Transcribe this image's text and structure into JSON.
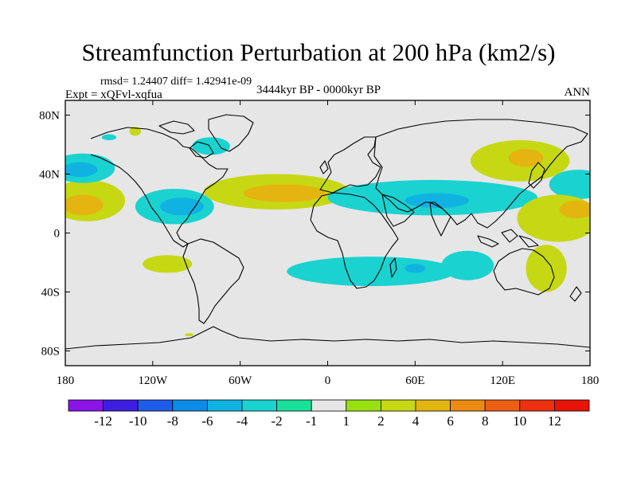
{
  "title": "Streamfunction Perturbation at 200 hPa (km2/s)",
  "stats": "rmsd= 1.24407 diff= 1.42941e-09",
  "experiment": "Expt = xQFvl-xqfua",
  "period": "3444kyr BP - 0000kyr BP",
  "season": "ANN",
  "map": {
    "projection": "cylindrical-equidistant",
    "lon_range": [
      -180,
      180
    ],
    "lat_range": [
      -90,
      90
    ],
    "background": "#e6e6e6",
    "lon_ticks": [
      {
        "value": -180,
        "label": "180"
      },
      {
        "value": -120,
        "label": "120W"
      },
      {
        "value": -60,
        "label": "60W"
      },
      {
        "value": 0,
        "label": "0"
      },
      {
        "value": 60,
        "label": "60E"
      },
      {
        "value": 120,
        "label": "120E"
      },
      {
        "value": 180,
        "label": "180"
      }
    ],
    "lat_ticks": [
      {
        "value": 80,
        "label": "80N"
      },
      {
        "value": 40,
        "label": "40N"
      },
      {
        "value": 0,
        "label": "0"
      },
      {
        "value": -40,
        "label": "40S"
      },
      {
        "value": -80,
        "label": "80S"
      }
    ]
  },
  "chart_data": {
    "type": "heatmap",
    "variable": "streamfunction perturbation",
    "units": "km2/s",
    "features": [
      {
        "kind": "positive",
        "level": 2,
        "center": [
          -165,
          22
        ],
        "radius": [
          26,
          14
        ]
      },
      {
        "kind": "positive",
        "level": 4,
        "center": [
          -168,
          19
        ],
        "radius": [
          14,
          7
        ]
      },
      {
        "kind": "negative",
        "level": -2,
        "center": [
          -168,
          44
        ],
        "radius": [
          22,
          10
        ]
      },
      {
        "kind": "negative",
        "level": -4,
        "center": [
          -170,
          43
        ],
        "radius": [
          12,
          5
        ]
      },
      {
        "kind": "negative",
        "level": -2,
        "center": [
          -105,
          18
        ],
        "radius": [
          27,
          12
        ]
      },
      {
        "kind": "negative",
        "level": -4,
        "center": [
          -100,
          18
        ],
        "radius": [
          15,
          6
        ]
      },
      {
        "kind": "negative",
        "level": -2,
        "center": [
          -80,
          59
        ],
        "radius": [
          13,
          6
        ]
      },
      {
        "kind": "positive",
        "level": 2,
        "center": [
          -132,
          69
        ],
        "radius": [
          4,
          3
        ]
      },
      {
        "kind": "positive",
        "level": 2,
        "center": [
          -35,
          28
        ],
        "radius": [
          50,
          12
        ]
      },
      {
        "kind": "positive",
        "level": 4,
        "center": [
          -30,
          27
        ],
        "radius": [
          28,
          6
        ]
      },
      {
        "kind": "negative",
        "level": -2,
        "center": [
          72,
          24
        ],
        "radius": [
          72,
          12
        ]
      },
      {
        "kind": "negative",
        "level": -4,
        "center": [
          75,
          22
        ],
        "radius": [
          22,
          5
        ]
      },
      {
        "kind": "positive",
        "level": 2,
        "center": [
          132,
          49
        ],
        "radius": [
          34,
          14
        ]
      },
      {
        "kind": "positive",
        "level": 4,
        "center": [
          136,
          51
        ],
        "radius": [
          12,
          6
        ]
      },
      {
        "kind": "negative",
        "level": -2,
        "center": [
          172,
          33
        ],
        "radius": [
          20,
          10
        ]
      },
      {
        "kind": "positive",
        "level": 2,
        "center": [
          158,
          10
        ],
        "radius": [
          28,
          16
        ]
      },
      {
        "kind": "positive",
        "level": 4,
        "center": [
          171,
          16
        ],
        "radius": [
          12,
          6
        ]
      },
      {
        "kind": "positive",
        "level": 2,
        "center": [
          150,
          -24
        ],
        "radius": [
          14,
          16
        ]
      },
      {
        "kind": "positive",
        "level": 2,
        "center": [
          -110,
          -21
        ],
        "radius": [
          17,
          6
        ]
      },
      {
        "kind": "negative",
        "level": -2,
        "center": [
          30,
          -26
        ],
        "radius": [
          58,
          10
        ]
      },
      {
        "kind": "negative",
        "level": -4,
        "center": [
          60,
          -24
        ],
        "radius": [
          7,
          3
        ]
      },
      {
        "kind": "negative",
        "level": -2,
        "center": [
          96,
          -22
        ],
        "radius": [
          18,
          10
        ]
      },
      {
        "kind": "positive",
        "level": 2,
        "center": [
          -95,
          -69
        ],
        "radius": [
          3,
          1
        ]
      },
      {
        "kind": "negative",
        "level": -2,
        "center": [
          -150,
          65
        ],
        "radius": [
          5,
          2
        ]
      }
    ]
  },
  "legend": {
    "labels": [
      "-12",
      "-10",
      "-8",
      "-6",
      "-4",
      "-2",
      "-1",
      "1",
      "2",
      "4",
      "6",
      "8",
      "10",
      "12"
    ],
    "colors": [
      "#8a14e8",
      "#3e1ee0",
      "#1e5cec",
      "#0c8ce6",
      "#10b2e2",
      "#1ad2d0",
      "#18e29a",
      "#e6e6e6",
      "#98e010",
      "#c6d814",
      "#e4b410",
      "#ec8a12",
      "#ec5e14",
      "#ec3010",
      "#e81408"
    ]
  }
}
